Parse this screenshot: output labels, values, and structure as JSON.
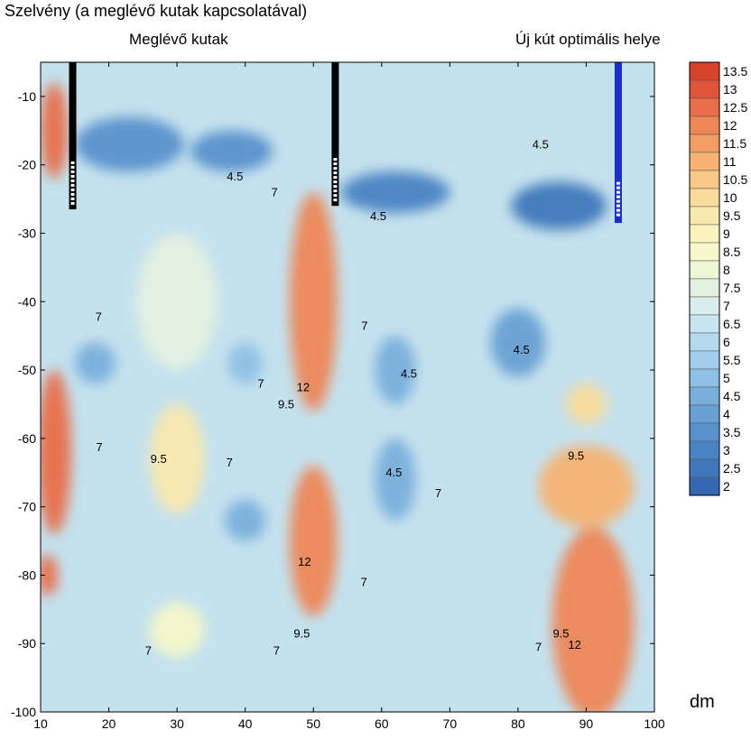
{
  "chart_data": {
    "type": "heatmap",
    "subtype": "filled-contour",
    "title": "Szelvény (a meglévő kutak kapcsolatával)",
    "annotations": {
      "existing_wells": "Meglévő kutak",
      "optimal_new_well": "Új kút optimális helye"
    },
    "unit_label": "dm",
    "x_ticks": [
      10,
      20,
      30,
      40,
      50,
      60,
      70,
      80,
      90,
      100
    ],
    "y_ticks": [
      -10,
      -20,
      -30,
      -40,
      -50,
      -60,
      -70,
      -80,
      -90,
      -100
    ],
    "xlim": [
      10,
      100
    ],
    "ylim": [
      -100,
      -5
    ],
    "colorbar": {
      "levels": [
        "13.5",
        "13",
        "12.5",
        "12",
        "11.5",
        "11",
        "10.5",
        "10",
        "9.5",
        "9",
        "8.5",
        "8",
        "7.5",
        "7",
        "6.5",
        "6",
        "5.5",
        "5",
        "4.5",
        "4",
        "3.5",
        "3",
        "2.5",
        "2"
      ],
      "colors": [
        "#d7422d",
        "#e0553a",
        "#e86d48",
        "#ee8656",
        "#f39c63",
        "#f6b373",
        "#f8c887",
        "#f9db9b",
        "#fae9ae",
        "#fbf3bd",
        "#f6f8c9",
        "#eef6d6",
        "#e4f1e2",
        "#d8edeb",
        "#c7e4ef",
        "#b5daee",
        "#a1ceea",
        "#8dc0e4",
        "#7aafdc",
        "#68a0d4",
        "#5991cc",
        "#4a83c3",
        "#3f77bb",
        "#3668b2"
      ]
    },
    "background_color": "#c4e1ee",
    "wells": [
      {
        "name": "existing-well-1",
        "x": 14.7,
        "y_top": -5,
        "y_bottom": -26.5,
        "screen_from": -19.5,
        "color": "#000000"
      },
      {
        "name": "existing-well-2",
        "x": 53.2,
        "y_top": -5,
        "y_bottom": -26,
        "screen_from": -19,
        "color": "#000000"
      },
      {
        "name": "new-well",
        "x": 94.7,
        "y_top": -5,
        "y_bottom": -28.5,
        "screen_from": -22.5,
        "color": "#1a2fc8"
      }
    ],
    "fields": [
      {
        "x": 12,
        "y": -15,
        "rx": 2,
        "ry": 7,
        "value": 12.5
      },
      {
        "x": 12,
        "y": -62,
        "rx": 2.5,
        "ry": 12,
        "value": 12.5
      },
      {
        "x": 11,
        "y": -80,
        "rx": 1.5,
        "ry": 3,
        "value": 12.5
      },
      {
        "x": 50,
        "y": -40,
        "rx": 3.5,
        "ry": 16,
        "value": 12
      },
      {
        "x": 50,
        "y": -75,
        "rx": 3.5,
        "ry": 11,
        "value": 11.8
      },
      {
        "x": 30,
        "y": -63,
        "rx": 4,
        "ry": 8,
        "value": 9.6
      },
      {
        "x": 30,
        "y": -88,
        "rx": 4,
        "ry": 4,
        "value": 8.5
      },
      {
        "x": 30,
        "y": -40,
        "rx": 6,
        "ry": 10,
        "value": 7.5
      },
      {
        "x": 91,
        "y": -87,
        "rx": 6,
        "ry": 14,
        "value": 12
      },
      {
        "x": 90,
        "y": -67,
        "rx": 7,
        "ry": 6,
        "value": 11
      },
      {
        "x": 90,
        "y": -55,
        "rx": 3,
        "ry": 3,
        "value": 9.8
      },
      {
        "x": 23,
        "y": -17,
        "rx": 8,
        "ry": 4,
        "value": 3.5
      },
      {
        "x": 38,
        "y": -18,
        "rx": 6,
        "ry": 3,
        "value": 3.5
      },
      {
        "x": 62,
        "y": -24,
        "rx": 8,
        "ry": 3,
        "value": 3.2
      },
      {
        "x": 86,
        "y": -26,
        "rx": 7,
        "ry": 3.5,
        "value": 2.7
      },
      {
        "x": 80,
        "y": -46,
        "rx": 4,
        "ry": 5,
        "value": 4
      },
      {
        "x": 62,
        "y": -50,
        "rx": 3,
        "ry": 5,
        "value": 4.3
      },
      {
        "x": 62,
        "y": -66,
        "rx": 3,
        "ry": 6,
        "value": 4.3
      },
      {
        "x": 18,
        "y": -49,
        "rx": 3,
        "ry": 3,
        "value": 4.5
      },
      {
        "x": 40,
        "y": -49,
        "rx": 2.5,
        "ry": 3,
        "value": 4.8
      },
      {
        "x": 40,
        "y": -72,
        "rx": 3,
        "ry": 3,
        "value": 4.5
      }
    ],
    "contour_labels": [
      {
        "text": "4.5",
        "x": 38.5,
        "y": -21.7
      },
      {
        "text": "7",
        "x": 44.3,
        "y": -24
      },
      {
        "text": "4.5",
        "x": 59.5,
        "y": -27.5
      },
      {
        "text": "4.5",
        "x": 83.3,
        "y": -17
      },
      {
        "text": "7",
        "x": 18.5,
        "y": -42.2
      },
      {
        "text": "7",
        "x": 57.5,
        "y": -43.5
      },
      {
        "text": "7",
        "x": 42.3,
        "y": -52
      },
      {
        "text": "4.5",
        "x": 80.5,
        "y": -47
      },
      {
        "text": "9.5",
        "x": 46,
        "y": -55
      },
      {
        "text": "12",
        "x": 48.5,
        "y": -52.5
      },
      {
        "text": "4.5",
        "x": 64,
        "y": -50.5
      },
      {
        "text": "7",
        "x": 18.6,
        "y": -61.3
      },
      {
        "text": "9.5",
        "x": 27.3,
        "y": -63
      },
      {
        "text": "7",
        "x": 37.7,
        "y": -63.5
      },
      {
        "text": "4.5",
        "x": 61.8,
        "y": -65
      },
      {
        "text": "9.5",
        "x": 88.5,
        "y": -62.5
      },
      {
        "text": "7",
        "x": 68.3,
        "y": -68
      },
      {
        "text": "12",
        "x": 48.7,
        "y": -78
      },
      {
        "text": "7",
        "x": 57.4,
        "y": -81
      },
      {
        "text": "7",
        "x": 25.8,
        "y": -91
      },
      {
        "text": "9.5",
        "x": 48.3,
        "y": -88.5
      },
      {
        "text": "7",
        "x": 44.6,
        "y": -91
      },
      {
        "text": "7",
        "x": 83,
        "y": -90.5
      },
      {
        "text": "9.5",
        "x": 86.3,
        "y": -88.5
      },
      {
        "text": "12",
        "x": 88.3,
        "y": -90.2
      }
    ],
    "grid": false,
    "legend": "right"
  }
}
